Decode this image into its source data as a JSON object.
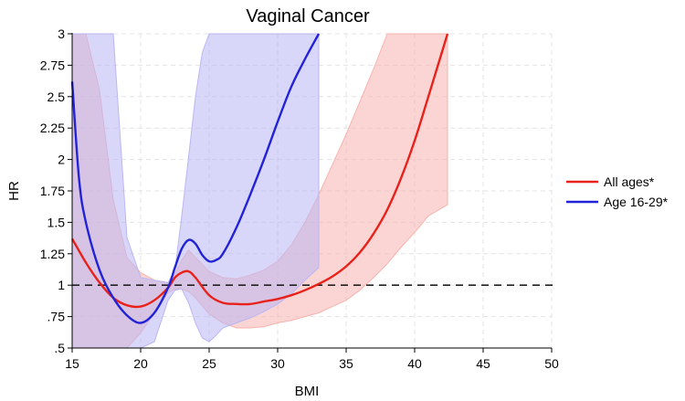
{
  "chart_data": {
    "type": "line",
    "title": "Vaginal Cancer",
    "xlabel": "BMI",
    "ylabel": "HR",
    "xlim": [
      15,
      50
    ],
    "ylim": [
      0.5,
      3
    ],
    "xticks": [
      "15",
      "20",
      "25",
      "30",
      "35",
      "40",
      "45",
      "50"
    ],
    "yticks": [
      ".5",
      ".75",
      "1",
      "1.25",
      "1.5",
      "1.75",
      "2",
      "2.25",
      "2.5",
      "2.75",
      "3"
    ],
    "grid": true,
    "reference_line": {
      "y": 1,
      "style": "dashed",
      "color": "#222222"
    },
    "legend_position": "right",
    "series": [
      {
        "name": "All ages*",
        "color": "#e8221b",
        "band_color": "#f7b3ae",
        "x": [
          15,
          16,
          17,
          18,
          19,
          20,
          21,
          22,
          22.5,
          23,
          23.5,
          24,
          25,
          26,
          27,
          28,
          29,
          30,
          31,
          32,
          33,
          34,
          35,
          36,
          37,
          38,
          39,
          40,
          41,
          42.4
        ],
        "y": [
          1.37,
          1.18,
          1.02,
          0.9,
          0.84,
          0.83,
          0.88,
          0.98,
          1.06,
          1.1,
          1.11,
          1.06,
          0.92,
          0.86,
          0.85,
          0.85,
          0.87,
          0.89,
          0.92,
          0.96,
          1.01,
          1.07,
          1.15,
          1.26,
          1.41,
          1.6,
          1.85,
          2.15,
          2.5,
          3.0
        ],
        "lower": [
          0.5,
          0.5,
          0.5,
          0.5,
          0.5,
          0.62,
          0.78,
          0.94,
          0.97,
          0.97,
          0.95,
          0.9,
          0.77,
          0.7,
          0.66,
          0.66,
          0.67,
          0.7,
          0.72,
          0.75,
          0.78,
          0.83,
          0.88,
          0.96,
          1.06,
          1.17,
          1.3,
          1.42,
          1.55,
          1.64
        ],
        "upper": [
          3.0,
          3.0,
          2.55,
          1.68,
          1.22,
          1.1,
          1.04,
          1.02,
          1.09,
          1.2,
          1.28,
          1.22,
          1.11,
          1.06,
          1.05,
          1.08,
          1.12,
          1.19,
          1.32,
          1.5,
          1.72,
          1.96,
          2.2,
          2.46,
          2.72,
          3.0,
          3.0,
          3.0,
          3.0,
          3.0
        ]
      },
      {
        "name": "Age 16-29*",
        "color": "#2222d6",
        "band_color": "#b9b6f4",
        "x": [
          15,
          15.5,
          16,
          17,
          18,
          19,
          20,
          21,
          22,
          22.5,
          23,
          23.5,
          24,
          24.5,
          25,
          25.5,
          26,
          27,
          28,
          29,
          30,
          31,
          32,
          33
        ],
        "y": [
          2.62,
          1.85,
          1.5,
          1.12,
          0.9,
          0.76,
          0.7,
          0.78,
          0.98,
          1.14,
          1.29,
          1.36,
          1.33,
          1.24,
          1.19,
          1.2,
          1.25,
          1.46,
          1.72,
          2.0,
          2.3,
          2.58,
          2.8,
          3.0
        ],
        "lower": [
          0.5,
          0.5,
          0.5,
          0.5,
          0.5,
          0.5,
          0.5,
          0.55,
          0.88,
          0.96,
          0.97,
          0.86,
          0.7,
          0.58,
          0.55,
          0.6,
          0.66,
          0.7,
          0.74,
          0.79,
          0.85,
          0.93,
          1.04,
          1.14
        ],
        "upper": [
          3.0,
          3.0,
          3.0,
          3.0,
          3.0,
          1.38,
          1.06,
          1.04,
          1.02,
          1.12,
          1.55,
          2.02,
          2.5,
          2.85,
          3.0,
          3.0,
          3.0,
          3.0,
          3.0,
          3.0,
          3.0,
          3.0,
          3.0,
          3.0
        ]
      }
    ]
  }
}
